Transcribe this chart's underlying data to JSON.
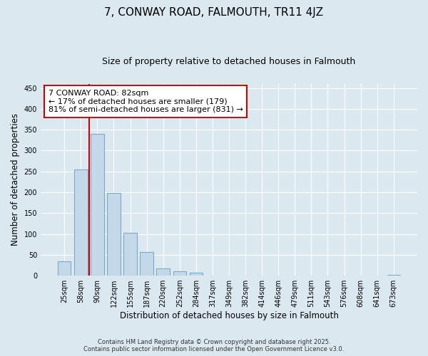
{
  "title": "7, CONWAY ROAD, FALMOUTH, TR11 4JZ",
  "subtitle": "Size of property relative to detached houses in Falmouth",
  "xlabel": "Distribution of detached houses by size in Falmouth",
  "ylabel": "Number of detached properties",
  "categories": [
    "25sqm",
    "58sqm",
    "90sqm",
    "122sqm",
    "155sqm",
    "187sqm",
    "220sqm",
    "252sqm",
    "284sqm",
    "317sqm",
    "349sqm",
    "382sqm",
    "414sqm",
    "446sqm",
    "479sqm",
    "511sqm",
    "543sqm",
    "576sqm",
    "608sqm",
    "641sqm",
    "673sqm"
  ],
  "values": [
    35,
    255,
    340,
    198,
    103,
    57,
    18,
    10,
    7,
    0,
    0,
    0,
    0,
    0,
    0,
    0,
    0,
    0,
    0,
    0,
    1
  ],
  "bar_color": "#c5d8ea",
  "bar_edge_color": "#7aaac8",
  "vline_x": 1.5,
  "vline_color": "#cc0000",
  "annotation_line1": "7 CONWAY ROAD: 82sqm",
  "annotation_line2": "← 17% of detached houses are smaller (179)",
  "annotation_line3": "81% of semi-detached houses are larger (831) →",
  "annotation_box_color": "#ffffff",
  "annotation_box_edge": "#cc0000",
  "ylim": [
    0,
    460
  ],
  "yticks": [
    0,
    50,
    100,
    150,
    200,
    250,
    300,
    350,
    400,
    450
  ],
  "footer_line1": "Contains HM Land Registry data © Crown copyright and database right 2025.",
  "footer_line2": "Contains public sector information licensed under the Open Government Licence v3.0.",
  "bg_color": "#dce8f0",
  "plot_bg_color": "#dce8f0",
  "grid_color": "#ffffff",
  "title_fontsize": 11,
  "subtitle_fontsize": 9,
  "tick_fontsize": 7,
  "label_fontsize": 8.5,
  "annotation_fontsize": 8
}
